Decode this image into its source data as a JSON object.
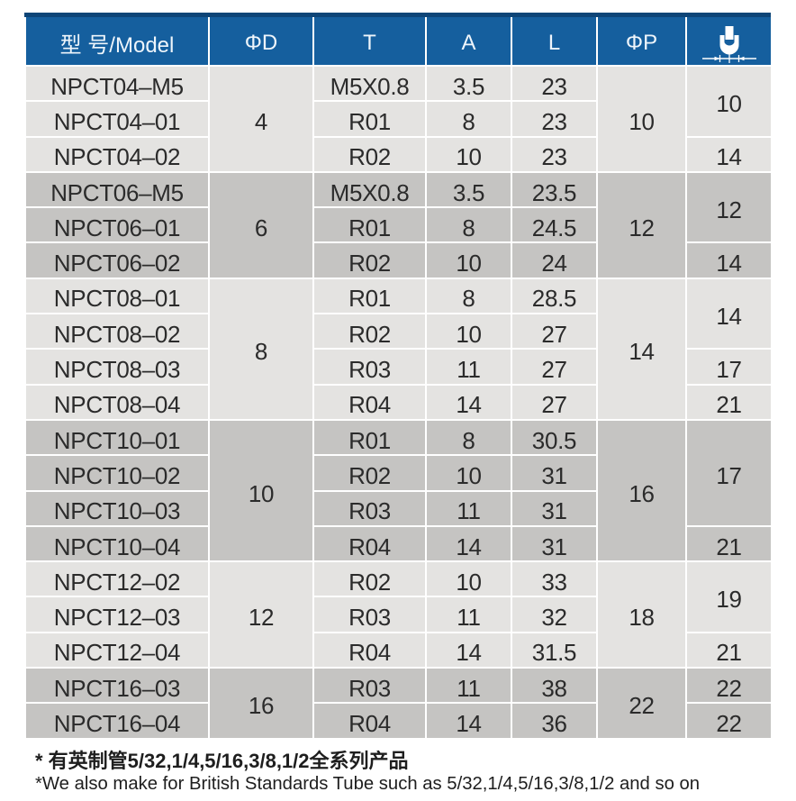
{
  "table": {
    "headers": {
      "model": "型 号/Model",
      "d": "ΦD",
      "t": "T",
      "a": "A",
      "l": "L",
      "p": "ΦP",
      "s": "width-across-flats-icon"
    },
    "groups": [
      {
        "d": "4",
        "p": "10",
        "rows": [
          {
            "model": "NPCT04–M5",
            "t": "M5X0.8",
            "a": "3.5",
            "l": "23"
          },
          {
            "model": "NPCT04–01",
            "t": "R01",
            "a": "8",
            "l": "23"
          },
          {
            "model": "NPCT04–02",
            "t": "R02",
            "a": "10",
            "l": "23"
          }
        ],
        "s_cells": [
          {
            "value": "10",
            "span": 2
          },
          {
            "value": "14",
            "span": 1
          }
        ]
      },
      {
        "d": "6",
        "p": "12",
        "rows": [
          {
            "model": "NPCT06–M5",
            "t": "M5X0.8",
            "a": "3.5",
            "l": "23.5"
          },
          {
            "model": "NPCT06–01",
            "t": "R01",
            "a": "8",
            "l": "24.5"
          },
          {
            "model": "NPCT06–02",
            "t": "R02",
            "a": "10",
            "l": "24"
          }
        ],
        "s_cells": [
          {
            "value": "12",
            "span": 2
          },
          {
            "value": "14",
            "span": 1
          }
        ]
      },
      {
        "d": "8",
        "p": "14",
        "rows": [
          {
            "model": "NPCT08–01",
            "t": "R01",
            "a": "8",
            "l": "28.5"
          },
          {
            "model": "NPCT08–02",
            "t": "R02",
            "a": "10",
            "l": "27"
          },
          {
            "model": "NPCT08–03",
            "t": "R03",
            "a": "11",
            "l": "27"
          },
          {
            "model": "NPCT08–04",
            "t": "R04",
            "a": "14",
            "l": "27"
          }
        ],
        "s_cells": [
          {
            "value": "14",
            "span": 2
          },
          {
            "value": "17",
            "span": 1
          },
          {
            "value": "21",
            "span": 1
          }
        ]
      },
      {
        "d": "10",
        "p": "16",
        "rows": [
          {
            "model": "NPCT10–01",
            "t": "R01",
            "a": "8",
            "l": "30.5"
          },
          {
            "model": "NPCT10–02",
            "t": "R02",
            "a": "10",
            "l": "31"
          },
          {
            "model": "NPCT10–03",
            "t": "R03",
            "a": "11",
            "l": "31"
          },
          {
            "model": "NPCT10–04",
            "t": "R04",
            "a": "14",
            "l": "31"
          }
        ],
        "s_cells": [
          {
            "value": "17",
            "span": 3
          },
          {
            "value": "21",
            "span": 1
          }
        ]
      },
      {
        "d": "12",
        "p": "18",
        "rows": [
          {
            "model": "NPCT12–02",
            "t": "R02",
            "a": "10",
            "l": "33"
          },
          {
            "model": "NPCT12–03",
            "t": "R03",
            "a": "11",
            "l": "32"
          },
          {
            "model": "NPCT12–04",
            "t": "R04",
            "a": "14",
            "l": "31.5"
          }
        ],
        "s_cells": [
          {
            "value": "19",
            "span": 2
          },
          {
            "value": "21",
            "span": 1
          }
        ]
      },
      {
        "d": "16",
        "p": "22",
        "rows": [
          {
            "model": "NPCT16–03",
            "t": "R03",
            "a": "11",
            "l": "38"
          },
          {
            "model": "NPCT16–04",
            "t": "R04",
            "a": "14",
            "l": "36"
          }
        ],
        "s_cells": [
          {
            "value": "22",
            "span": 1
          },
          {
            "value": "22",
            "span": 1
          }
        ]
      }
    ],
    "notes": [
      "* 有英制管5/32,1/4,5/16,3/8,1/2全系列产品",
      "*We also make for British Standards Tube such as 5/32,1/4,5/16,3/8,1/2 and so on"
    ]
  },
  "colors": {
    "header_blue": "#155f9e",
    "header_top_strip": "#0e4577",
    "row_light": "#e4e3e1",
    "row_dark": "#c5c4c2",
    "text": "#2b2b2b"
  }
}
